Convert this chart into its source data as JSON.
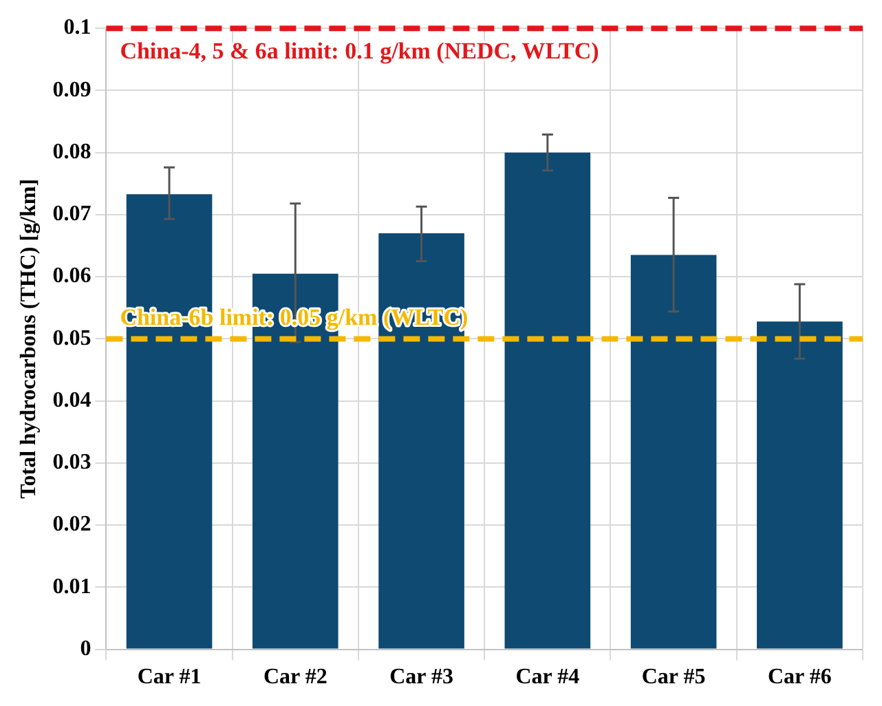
{
  "chart_data": {
    "type": "bar",
    "ylabel": "Total hydrocarbons (THC) [g/km]",
    "categories": [
      "Car #1",
      "Car #2",
      "Car #3",
      "Car #4",
      "Car #5",
      "Car #6"
    ],
    "values": [
      0.0733,
      0.0605,
      0.067,
      0.08,
      0.0635,
      0.0528
    ],
    "errors": [
      [
        0.0693,
        0.0776
      ],
      [
        0.0495,
        0.0718
      ],
      [
        0.0625,
        0.0713
      ],
      [
        0.0771,
        0.0829
      ],
      [
        0.0544,
        0.0727
      ],
      [
        0.0468,
        0.0588
      ]
    ],
    "color": "#0e4a72",
    "ylim": [
      0,
      0.1
    ],
    "yticks": [
      0,
      0.01,
      0.02,
      0.03,
      0.04,
      0.05,
      0.06,
      0.07,
      0.08,
      0.09,
      0.1
    ],
    "grid": true,
    "ref_lines": [
      {
        "axis": "y",
        "value": 0.1,
        "label": "China-4, 5 & 6a limit: 0.1 g/km (NEDC, WLTC)",
        "color": "#e3171b",
        "line_style": "dashed"
      },
      {
        "axis": "y",
        "value": 0.05,
        "label": "China-6b limit: 0.05 g/km (WLTC)",
        "color": "#f5b800",
        "line_style": "dashed"
      }
    ]
  }
}
